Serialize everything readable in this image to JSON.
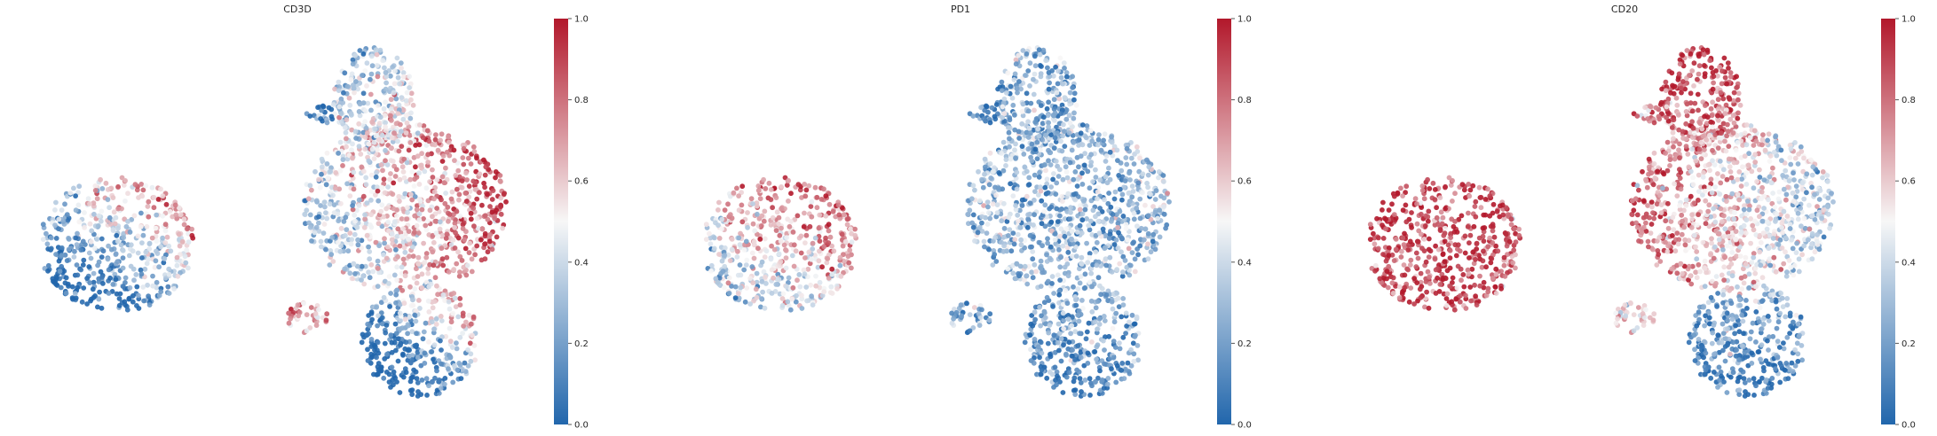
{
  "chart_data": [
    {
      "type": "scatter",
      "title": "CD3D",
      "xlabel": "",
      "ylabel": "",
      "colorbar": {
        "range": [
          0.0,
          1.0
        ],
        "ticks": [
          "0.0",
          "0.2",
          "0.4",
          "0.6",
          "0.8",
          "1.0"
        ],
        "cmap": [
          "#2166ac",
          "#f7f7f7",
          "#b2182b"
        ]
      },
      "regions": [
        {
          "cx": -7.0,
          "cy": 0.2,
          "rx": 3.0,
          "ry": 2.4,
          "n": 520,
          "base": 0.32,
          "gx": 0.09,
          "gy": 0.12
        },
        {
          "cx": 4.2,
          "cy": 1.5,
          "rx": 4.0,
          "ry": 3.0,
          "n": 900,
          "base": 0.6,
          "gx": 0.1,
          "gy": 0.03
        },
        {
          "cx": 3.0,
          "cy": 5.3,
          "rx": 1.6,
          "ry": 1.9,
          "n": 260,
          "base": 0.42,
          "gx": 0.03,
          "gy": -0.04
        },
        {
          "cx": 4.8,
          "cy": -3.2,
          "rx": 2.3,
          "ry": 2.0,
          "n": 360,
          "base": 0.22,
          "gx": 0.12,
          "gy": 0.12
        },
        {
          "cx": 0.4,
          "cy": -2.4,
          "rx": 0.8,
          "ry": 0.6,
          "n": 40,
          "base": 0.68,
          "gx": 0,
          "gy": 0
        },
        {
          "cx": 0.9,
          "cy": 4.8,
          "rx": 0.55,
          "ry": 0.35,
          "n": 22,
          "base": 0.05,
          "gx": 0,
          "gy": 0
        }
      ]
    },
    {
      "type": "scatter",
      "title": "PD1",
      "xlabel": "",
      "ylabel": "",
      "colorbar": {
        "range": [
          0.0,
          1.0
        ],
        "ticks": [
          "0.0",
          "0.2",
          "0.4",
          "0.6",
          "0.8",
          "1.0"
        ],
        "cmap": [
          "#2166ac",
          "#f7f7f7",
          "#b2182b"
        ]
      },
      "regions": [
        {
          "cx": -7.0,
          "cy": 0.2,
          "rx": 3.0,
          "ry": 2.4,
          "n": 520,
          "base": 0.6,
          "gx": 0.05,
          "gy": 0.08
        },
        {
          "cx": 4.2,
          "cy": 1.5,
          "rx": 4.0,
          "ry": 3.0,
          "n": 900,
          "base": 0.27,
          "gx": 0.0,
          "gy": 0.0
        },
        {
          "cx": 3.0,
          "cy": 5.3,
          "rx": 1.6,
          "ry": 1.9,
          "n": 260,
          "base": 0.24,
          "gx": 0.0,
          "gy": 0.0
        },
        {
          "cx": 4.8,
          "cy": -3.2,
          "rx": 2.3,
          "ry": 2.0,
          "n": 360,
          "base": 0.15,
          "gx": 0.0,
          "gy": 0.03
        },
        {
          "cx": 0.4,
          "cy": -2.4,
          "rx": 0.8,
          "ry": 0.6,
          "n": 40,
          "base": 0.28,
          "gx": 0,
          "gy": 0
        },
        {
          "cx": 0.9,
          "cy": 4.8,
          "rx": 0.55,
          "ry": 0.35,
          "n": 22,
          "base": 0.05,
          "gx": 0,
          "gy": 0
        }
      ]
    },
    {
      "type": "scatter",
      "title": "CD20",
      "xlabel": "",
      "ylabel": "",
      "colorbar": {
        "range": [
          0.0,
          1.0
        ],
        "ticks": [
          "0.0",
          "0.2",
          "0.4",
          "0.6",
          "0.8",
          "1.0"
        ],
        "cmap": [
          "#2166ac",
          "#f7f7f7",
          "#b2182b"
        ]
      },
      "regions": [
        {
          "cx": -7.0,
          "cy": 0.2,
          "rx": 3.0,
          "ry": 2.4,
          "n": 520,
          "base": 0.9,
          "gx": 0.0,
          "gy": 0.0
        },
        {
          "cx": 4.2,
          "cy": 1.5,
          "rx": 4.0,
          "ry": 3.0,
          "n": 900,
          "base": 0.58,
          "gx": -0.09,
          "gy": 0.0
        },
        {
          "cx": 3.0,
          "cy": 5.3,
          "rx": 1.6,
          "ry": 1.9,
          "n": 260,
          "base": 0.85,
          "gx": 0.0,
          "gy": 0.04
        },
        {
          "cx": 4.8,
          "cy": -3.2,
          "rx": 2.3,
          "ry": 2.0,
          "n": 360,
          "base": 0.16,
          "gx": 0.0,
          "gy": 0.05
        },
        {
          "cx": 0.4,
          "cy": -2.4,
          "rx": 0.8,
          "ry": 0.6,
          "n": 40,
          "base": 0.6,
          "gx": 0,
          "gy": 0
        },
        {
          "cx": 0.9,
          "cy": 4.8,
          "rx": 0.55,
          "ry": 0.35,
          "n": 22,
          "base": 0.7,
          "gx": 0,
          "gy": 0
        }
      ]
    }
  ]
}
